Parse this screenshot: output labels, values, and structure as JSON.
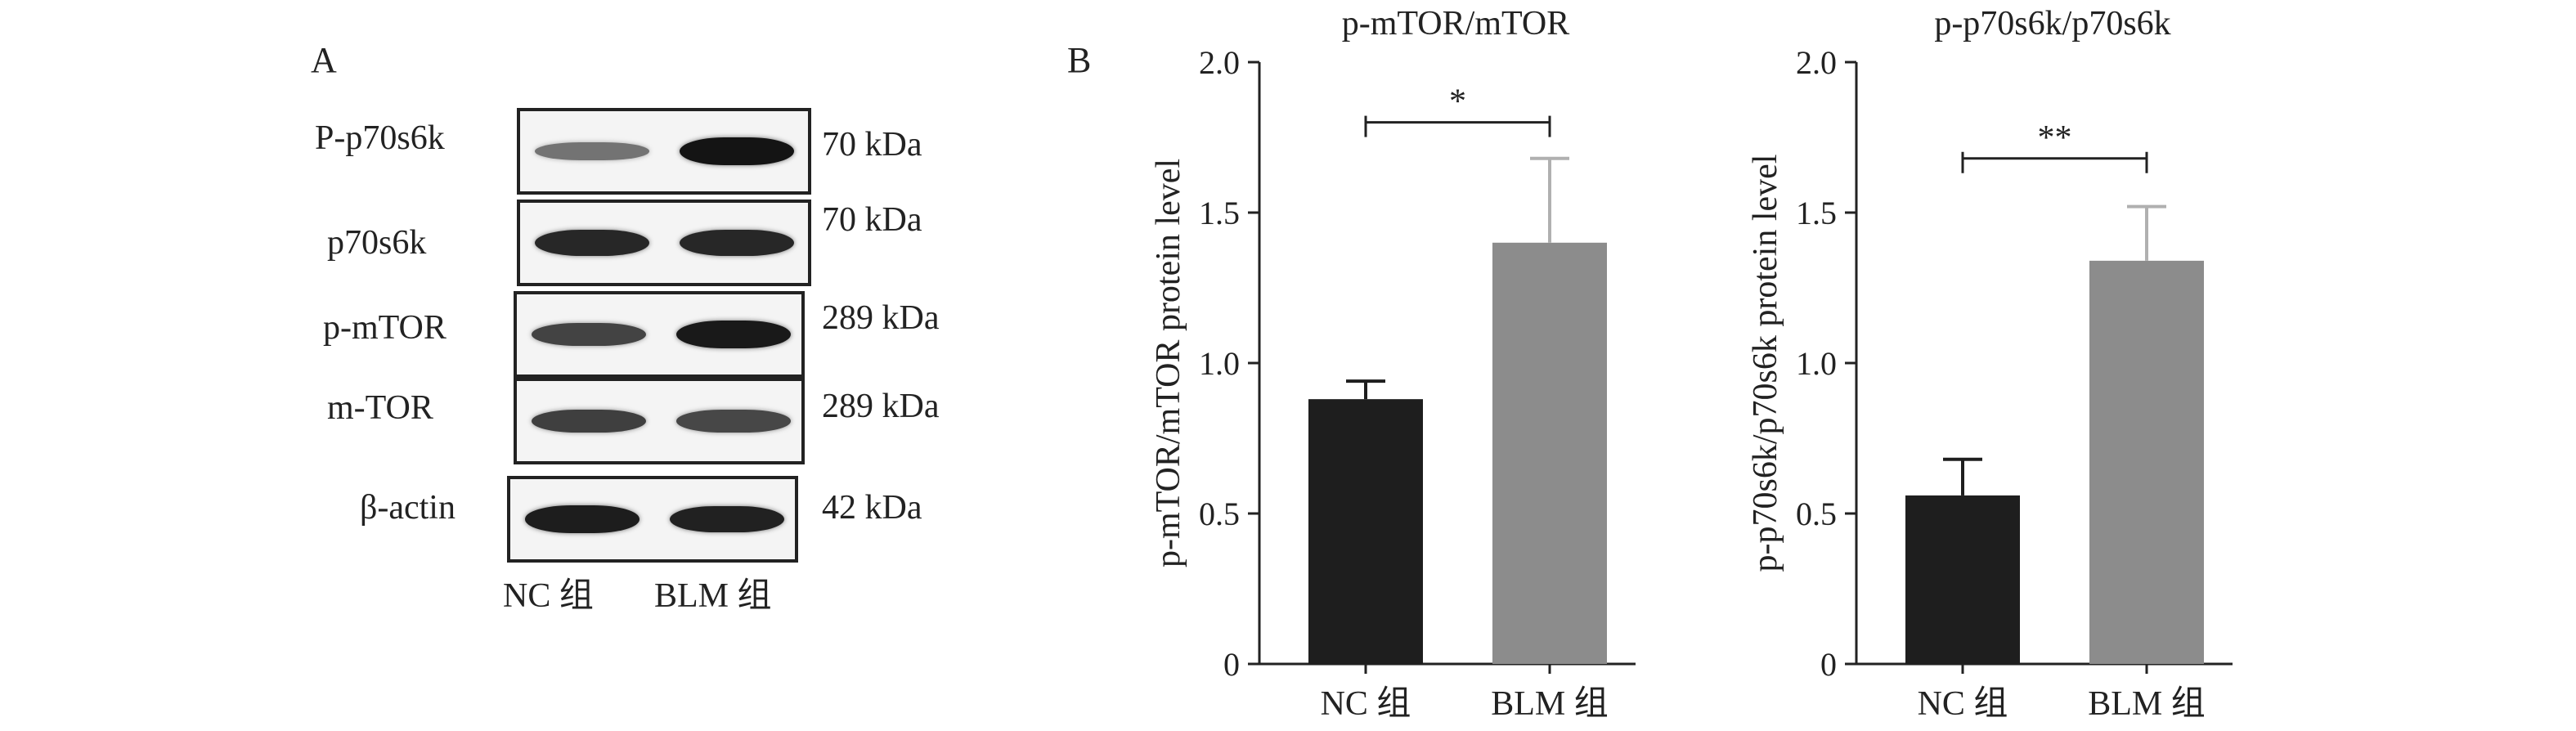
{
  "panel_a": {
    "letter": "A",
    "blots": [
      {
        "protein": "P-p70s6k",
        "size": "70 kDa",
        "nc_intensity": 0.45,
        "blm_intensity": 0.95
      },
      {
        "protein": "p70s6k",
        "size": "70 kDa",
        "nc_intensity": 0.85,
        "blm_intensity": 0.85
      },
      {
        "protein": "p-mTOR",
        "size": "289 kDa",
        "nc_intensity": 0.7,
        "blm_intensity": 0.92
      },
      {
        "protein": "m-TOR",
        "size": "289 kDa",
        "nc_intensity": 0.72,
        "blm_intensity": 0.68
      },
      {
        "protein": "β-actin",
        "size": "42 kDa",
        "nc_intensity": 0.9,
        "blm_intensity": 0.88
      }
    ],
    "lanes": [
      "NC 组",
      "BLM 组"
    ]
  },
  "panel_b_letter": "B",
  "chart_data": [
    {
      "type": "bar",
      "title": "p-mTOR/mTOR",
      "xlabel": "",
      "ylabel": "p-mTOR/mTOR protein level",
      "ylim": [
        0,
        2.0
      ],
      "yticks": [
        "0",
        "0.5",
        "1.0",
        "1.5",
        "2.0"
      ],
      "categories": [
        "NC 组",
        "BLM 组"
      ],
      "values": [
        0.88,
        1.4
      ],
      "errors": [
        0.06,
        0.28
      ],
      "colors": [
        "#1e1e1e",
        "#8c8c8c"
      ],
      "significance": "*",
      "bracket_y": 1.8
    },
    {
      "type": "bar",
      "title": "p-p70s6k/p70s6k",
      "xlabel": "",
      "ylabel": "p-p70s6k/p70s6k protein level",
      "ylim": [
        0,
        2.0
      ],
      "yticks": [
        "0",
        "0.5",
        "1.0",
        "1.5",
        "2.0"
      ],
      "categories": [
        "NC 组",
        "BLM 组"
      ],
      "values": [
        0.56,
        1.34
      ],
      "errors": [
        0.12,
        0.18
      ],
      "colors": [
        "#1e1e1e",
        "#8c8c8c"
      ],
      "significance": "**",
      "bracket_y": 1.68
    }
  ]
}
